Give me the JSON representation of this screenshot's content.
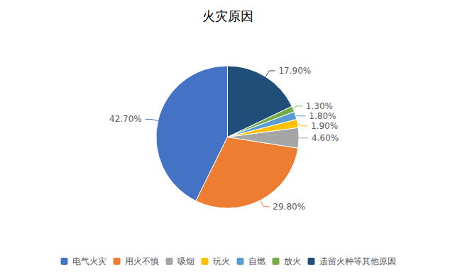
{
  "chart_data": {
    "type": "pie",
    "title": "火灾原因",
    "categories": [
      "电气火灾",
      "用火不慎",
      "吸烟",
      "玩火",
      "自燃",
      "放火",
      "遗留火种等其他原因"
    ],
    "values": [
      42.7,
      29.8,
      4.6,
      1.9,
      1.8,
      1.3,
      17.9
    ],
    "value_labels": [
      "42.70%",
      "29.80%",
      "4.60%",
      "1.90%",
      "1.80%",
      "1.30%",
      "17.90%"
    ],
    "colors": [
      "#4472C4",
      "#ED7D31",
      "#A5A5A5",
      "#FFC000",
      "#5B9BD5",
      "#70AD47",
      "#1F4E79"
    ],
    "data_labels": true,
    "legend": "bottom"
  }
}
